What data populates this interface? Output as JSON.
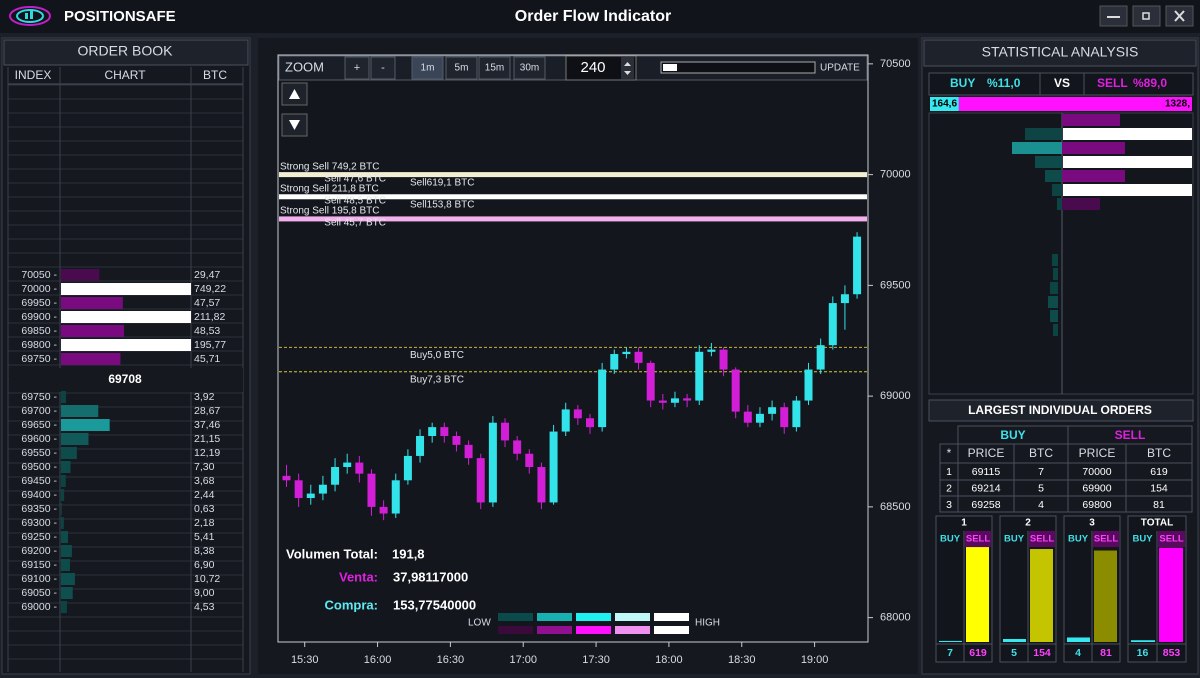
{
  "app": {
    "brand": "POSITIONSAFE",
    "title": "Order Flow Indicator"
  },
  "order_book": {
    "title": "ORDER BOOK",
    "columns": [
      "INDEX",
      "CHART",
      "BTC"
    ],
    "asks": [
      {
        "index": "70050 -",
        "btc": {
          "value": 29.47,
          "label": "29,47"
        },
        "color": "#4a0a4e"
      },
      {
        "index": "70000 -",
        "btc": {
          "value": 749.22,
          "label": "749,22"
        },
        "color": "#ffffff"
      },
      {
        "index": "69950 -",
        "btc": {
          "value": 47.57,
          "label": "47,57"
        },
        "color": "#7a0a80"
      },
      {
        "index": "69900 -",
        "btc": {
          "value": 211.82,
          "label": "211,82"
        },
        "color": "#ffffff"
      },
      {
        "index": "69850 -",
        "btc": {
          "value": 48.53,
          "label": "48,53"
        },
        "color": "#7a0a80"
      },
      {
        "index": "69800 -",
        "btc": {
          "value": 195.77,
          "label": "195,77"
        },
        "color": "#ffffff"
      },
      {
        "index": "69750 -",
        "btc": {
          "value": 45.71,
          "label": "45,71"
        },
        "color": "#7a0a80"
      }
    ],
    "mid": "69708",
    "bids": [
      {
        "index": "69750 -",
        "btc": {
          "value": 3.92,
          "label": "3,92"
        },
        "color": "#0c4444"
      },
      {
        "index": "69700 -",
        "btc": {
          "value": 28.67,
          "label": "28,67"
        },
        "color": "#156e6e"
      },
      {
        "index": "69650 -",
        "btc": {
          "value": 37.46,
          "label": "37,46"
        },
        "color": "#1a9a9a"
      },
      {
        "index": "69600 -",
        "btc": {
          "value": 21.15,
          "label": "21,15"
        },
        "color": "#105a5a"
      },
      {
        "index": "69550 -",
        "btc": {
          "value": 12.19,
          "label": "12,19"
        },
        "color": "#0e4c4c"
      },
      {
        "index": "69500 -",
        "btc": {
          "value": 7.3,
          "label": "7,30"
        },
        "color": "#0e4c4c"
      },
      {
        "index": "69450 -",
        "btc": {
          "value": 3.68,
          "label": "3,68"
        },
        "color": "#0c4444"
      },
      {
        "index": "69400 -",
        "btc": {
          "value": 2.44,
          "label": "2,44"
        },
        "color": "#0c4444"
      },
      {
        "index": "69350 -",
        "btc": {
          "value": 0.63,
          "label": "0,63"
        },
        "color": "#0c4444"
      },
      {
        "index": "69300 -",
        "btc": {
          "value": 2.18,
          "label": "2,18"
        },
        "color": "#0c4444"
      },
      {
        "index": "69250 -",
        "btc": {
          "value": 5.41,
          "label": "5,41"
        },
        "color": "#0e4c4c"
      },
      {
        "index": "69200 -",
        "btc": {
          "value": 8.38,
          "label": "8,38"
        },
        "color": "#0e4c4c"
      },
      {
        "index": "69150 -",
        "btc": {
          "value": 6.9,
          "label": "6,90"
        },
        "color": "#0e4c4c"
      },
      {
        "index": "69100 -",
        "btc": {
          "value": 10.72,
          "label": "10,72"
        },
        "color": "#0e5050"
      },
      {
        "index": "69050 -",
        "btc": {
          "value": 9.0,
          "label": "9,00"
        },
        "color": "#0e5050"
      },
      {
        "index": "69000 -",
        "btc": {
          "value": 4.53,
          "label": "4,53"
        },
        "color": "#0c4444"
      }
    ]
  },
  "toolbar": {
    "zoom": "ZOOM",
    "plus": "+",
    "minus": "-",
    "intervals": [
      "1m",
      "5m",
      "15m",
      "30m"
    ],
    "count": "240",
    "update": "UPDATE"
  },
  "chart_data": {
    "type": "candlestick",
    "x": [
      "15:20",
      "15:25",
      "15:30",
      "15:35",
      "15:40",
      "15:45",
      "15:50",
      "15:55",
      "16:00",
      "16:05",
      "16:10",
      "16:15",
      "16:20",
      "16:25",
      "16:30",
      "16:35",
      "16:40",
      "16:45",
      "16:50",
      "16:55",
      "17:00",
      "17:05",
      "17:10",
      "17:15",
      "17:20",
      "17:25",
      "17:30",
      "17:35",
      "17:40",
      "17:45",
      "17:50",
      "17:55",
      "18:00",
      "18:05",
      "18:10",
      "18:15",
      "18:20",
      "18:25",
      "18:30",
      "18:35",
      "18:40",
      "18:45",
      "18:50",
      "18:55",
      "19:00",
      "19:05",
      "19:10",
      "19:15"
    ],
    "open": [
      68640,
      68620,
      68540,
      68560,
      68600,
      68680,
      68700,
      68650,
      68500,
      68470,
      68620,
      68730,
      68820,
      68860,
      68820,
      68780,
      68720,
      68520,
      68880,
      68800,
      68740,
      68680,
      68520,
      68840,
      68940,
      68900,
      68860,
      69120,
      69190,
      69200,
      69150,
      68980,
      68970,
      68990,
      68980,
      69200,
      69210,
      69120,
      68930,
      68880,
      68920,
      68950,
      68860,
      68980,
      69120,
      69230,
      69420,
      69460
    ],
    "high": [
      68690,
      68650,
      68600,
      68640,
      68720,
      68740,
      68730,
      68670,
      68530,
      68650,
      68760,
      68850,
      68880,
      68880,
      68840,
      68800,
      68740,
      68910,
      68900,
      68820,
      68760,
      68700,
      68870,
      68970,
      68960,
      68920,
      69150,
      69210,
      69220,
      69220,
      69160,
      69010,
      69020,
      69010,
      69230,
      69240,
      69220,
      69130,
      68960,
      68950,
      68980,
      68970,
      69000,
      69150,
      69260,
      69450,
      69500,
      69740
    ],
    "low": [
      68590,
      68500,
      68510,
      68530,
      68570,
      68650,
      68610,
      68460,
      68440,
      68450,
      68600,
      68700,
      68790,
      68790,
      68750,
      68690,
      68490,
      68500,
      68770,
      68710,
      68650,
      68490,
      68510,
      68820,
      68870,
      68830,
      68840,
      69100,
      69170,
      69120,
      68950,
      68940,
      68950,
      68950,
      68960,
      69180,
      69090,
      68900,
      68860,
      68860,
      68890,
      68830,
      68840,
      68960,
      69100,
      69210,
      69300,
      69440
    ],
    "close": [
      68620,
      68540,
      68560,
      68600,
      68680,
      68700,
      68650,
      68500,
      68470,
      68620,
      68730,
      68820,
      68860,
      68820,
      68780,
      68720,
      68520,
      68880,
      68800,
      68740,
      68680,
      68520,
      68840,
      68940,
      68900,
      68860,
      69120,
      69190,
      69200,
      69150,
      68980,
      68970,
      68990,
      68980,
      69200,
      69210,
      69120,
      68930,
      68880,
      68920,
      68950,
      68860,
      68980,
      69120,
      69230,
      69420,
      69460,
      69720
    ],
    "up_color": "#33e3ea",
    "down_color": "#d21ed6",
    "xlim": [
      "15:19",
      "19:22"
    ],
    "xticks": [
      "15:30",
      "16:00",
      "16:30",
      "17:00",
      "17:30",
      "18:00",
      "18:30",
      "19:00"
    ],
    "ylim": [
      67890,
      70540
    ],
    "yticks": [
      68000,
      68500,
      69000,
      69500,
      70000,
      70500
    ],
    "levels": [
      {
        "value": 70000,
        "color": "#f3efd2",
        "style": "band"
      },
      {
        "value": 69900,
        "color": "#ffffff",
        "style": "band"
      },
      {
        "value": 69800,
        "color": "#f2b0ec",
        "style": "band"
      },
      {
        "value": 69220,
        "color": "#c8b43a",
        "style": "dashed"
      },
      {
        "value": 69110,
        "color": "#d8c83a",
        "style": "dashed"
      }
    ],
    "annotations": [
      {
        "text": "Strong Sell 749,2 BTC",
        "value": 70000,
        "align": "left"
      },
      {
        "text": "Sell 47,6 BTC",
        "value": 70000,
        "align": "right"
      },
      {
        "text": "Sell619,1 BTC",
        "value": 70000,
        "align": "mid"
      },
      {
        "text": "Strong Sell 211,8 BTC",
        "value": 69900,
        "align": "left"
      },
      {
        "text": "Sell 48,5 BTC",
        "value": 69900,
        "align": "right"
      },
      {
        "text": "Sell153,8 BTC",
        "value": 69900,
        "align": "mid"
      },
      {
        "text": "Strong Sell 195,8 BTC",
        "value": 69800,
        "align": "left"
      },
      {
        "text": "Sell 45,7 BTC",
        "value": 69800,
        "align": "right"
      },
      {
        "text": "Buy5,0 BTC",
        "value": 69220,
        "align": "mid"
      },
      {
        "text": "Buy7,3 BTC",
        "value": 69110,
        "align": "mid"
      }
    ]
  },
  "chart_panel": {
    "summary": [
      {
        "label": "Volumen Total:",
        "value": "191,8",
        "color": "#ffffff"
      },
      {
        "label": "Venta:",
        "value": "37,98117000",
        "color": "#e020e0"
      },
      {
        "label": "Compra:",
        "value": "153,77540000",
        "color": "#60e8f0"
      }
    ],
    "legend": {
      "low": "LOW",
      "high": "HIGH",
      "buy_colors": [
        "#0a4a4a",
        "#18b0b0",
        "#20f0f0",
        "#c0f8f8",
        "#ffffff"
      ],
      "sell_colors": [
        "#3a0a3a",
        "#901090",
        "#ff10ff",
        "#f090f0",
        "#ffffff"
      ]
    }
  },
  "stats": {
    "title": "STATISTICAL ANALYSIS",
    "buy_label": "BUY",
    "buy_pct": "%11,0",
    "vs": "VS",
    "sell_label": "SELL",
    "sell_pct": "%89,0",
    "buy_volume": {
      "value": 164.6,
      "label": "164,6"
    },
    "sell_volume": {
      "value": 1328,
      "label": "1328,"
    }
  },
  "largest_orders": {
    "title": "LARGEST INDIVIDUAL ORDERS",
    "buy": "BUY",
    "sell": "SELL",
    "columns": [
      "*",
      "PRICE",
      "BTC",
      "PRICE",
      "BTC"
    ],
    "rows": [
      [
        "1",
        "69115",
        "7",
        "70000",
        "619"
      ],
      [
        "2",
        "69214",
        "5",
        "69900",
        "154"
      ],
      [
        "3",
        "69258",
        "4",
        "69800",
        "81"
      ]
    ]
  },
  "gauges": {
    "buy": "BUY",
    "sell": "SELL",
    "items": [
      {
        "name": "1",
        "buy": 7,
        "sell": 619,
        "color": "#ffff00"
      },
      {
        "name": "2",
        "buy": 5,
        "sell": 154,
        "color": "#c4c400"
      },
      {
        "name": "3",
        "buy": 4,
        "sell": 81,
        "color": "#8c8c00"
      },
      {
        "name": "TOTAL",
        "buy": 16,
        "sell": 853,
        "color": "#ff00ff"
      }
    ]
  }
}
